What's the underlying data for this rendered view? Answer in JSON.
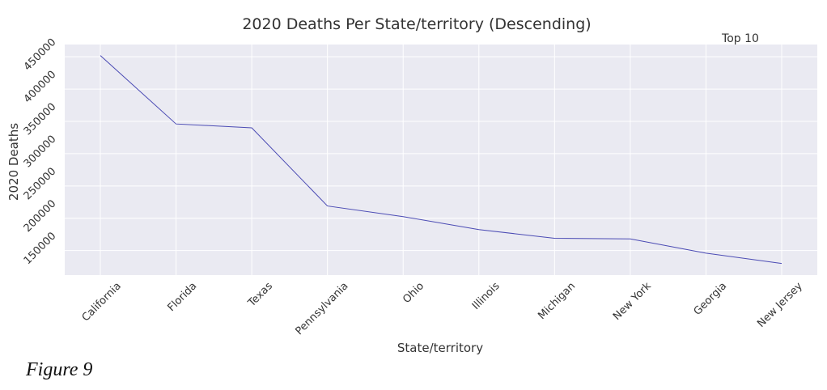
{
  "chart_data": {
    "type": "line",
    "title": "2020 Deaths Per State/territory (Descending)",
    "annotation": "Top 10",
    "x_label": "State/territory",
    "y_label": "2020 Deaths",
    "categories": [
      "California",
      "Florida",
      "Texas",
      "Pennsylvania",
      "Ohio",
      "Illinois",
      "Michigan",
      "New York",
      "Georgia",
      "New Jersey"
    ],
    "values": [
      452000,
      346000,
      340000,
      219000,
      202500,
      182500,
      169000,
      168000,
      146000,
      130000
    ],
    "color": "#4b4bb4",
    "ylim": [
      112000,
      469000
    ],
    "yticks": [
      150000,
      200000,
      250000,
      300000,
      350000,
      400000,
      450000
    ],
    "grid": true
  },
  "caption": "Figure 9"
}
